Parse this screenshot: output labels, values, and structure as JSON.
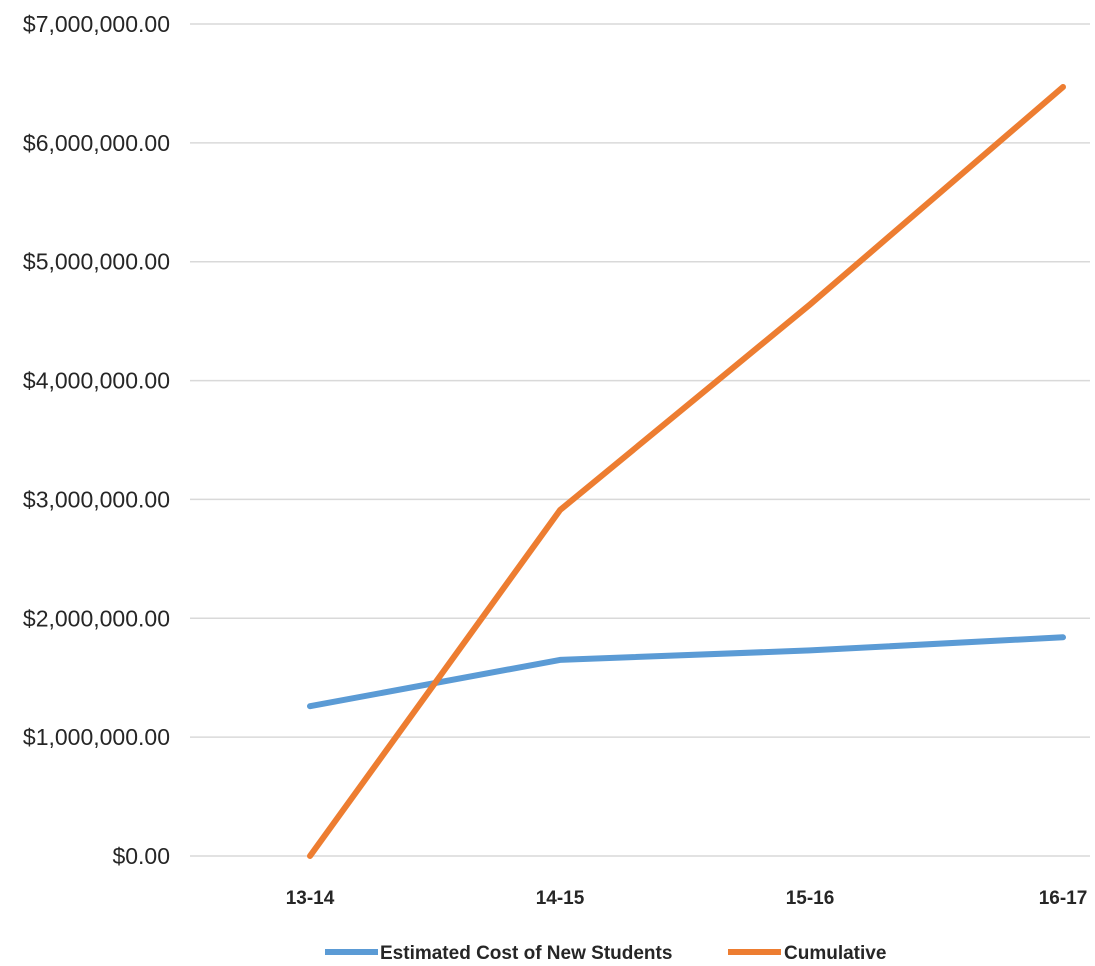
{
  "chart_data": {
    "type": "line",
    "title": "",
    "xlabel": "",
    "ylabel": "",
    "categories": [
      "13-14",
      "14-15",
      "15-16",
      "16-17"
    ],
    "y_tick_labels": [
      "$0.00",
      "$1,000,000.00",
      "$2,000,000.00",
      "$3,000,000.00",
      "$4,000,000.00",
      "$5,000,000.00",
      "$6,000,000.00",
      "$7,000,000.00"
    ],
    "y_ticks": [
      0,
      1000000,
      2000000,
      3000000,
      4000000,
      5000000,
      6000000,
      7000000
    ],
    "ylim": [
      0,
      7000000
    ],
    "grid": "horizontal",
    "legend_position": "bottom",
    "series": [
      {
        "name": "Estimated Cost of New Students",
        "color": "#5B9BD5",
        "values": [
          1260000,
          1650000,
          1730000,
          1840000
        ]
      },
      {
        "name": "Cumulative",
        "color": "#ED7D31",
        "values": [
          0,
          2910000,
          4640000,
          6470000
        ]
      }
    ]
  }
}
